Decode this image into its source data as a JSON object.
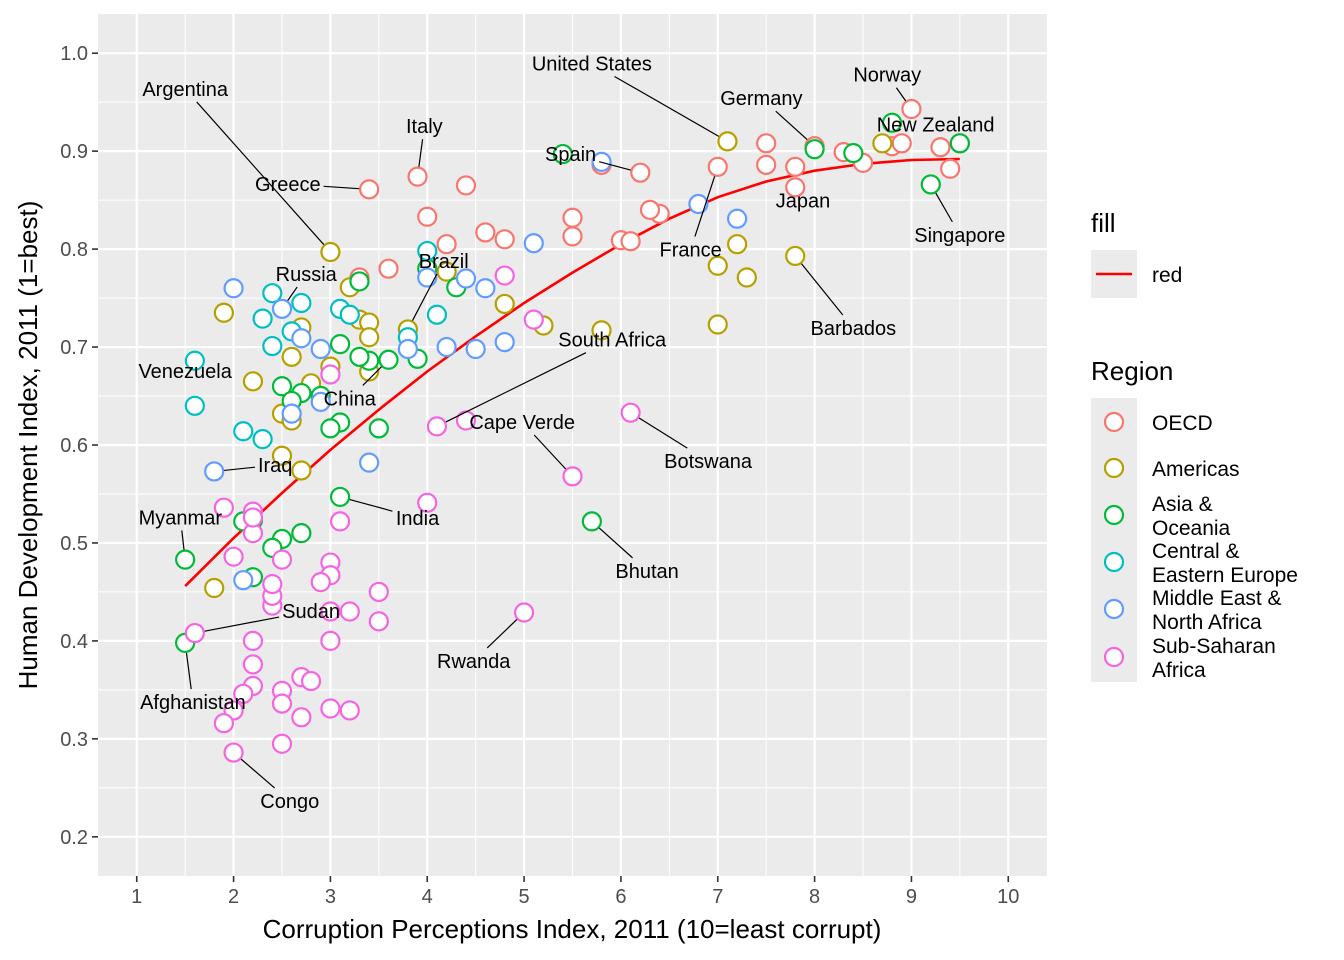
{
  "chart_data": {
    "type": "scatter",
    "xlabel": "Corruption Perceptions Index, 2011 (10=least corrupt)",
    "ylabel": "Human Development Index, 2011 (1=best)",
    "xlim": [
      0.6,
      10.4
    ],
    "ylim": [
      0.16,
      1.04
    ],
    "x_ticks": [
      1,
      2,
      3,
      4,
      5,
      6,
      7,
      8,
      9,
      10
    ],
    "y_ticks": [
      0.2,
      0.3,
      0.4,
      0.5,
      0.6,
      0.7,
      0.8,
      0.9,
      1.0
    ],
    "x_tick_labels": [
      "1",
      "2",
      "3",
      "4",
      "5",
      "6",
      "7",
      "8",
      "9",
      "10"
    ],
    "y_tick_labels": [
      "0.2",
      "0.3",
      "0.4",
      "0.5",
      "0.6",
      "0.7",
      "0.8",
      "0.9",
      "1.0"
    ],
    "grid": true,
    "legend_position": "right",
    "legends": [
      {
        "title": "fill",
        "entries": [
          {
            "label": "red",
            "color": "#FF0000",
            "shape": "line"
          }
        ]
      },
      {
        "title": "Region",
        "entries": [
          {
            "key": "OECD",
            "lines": [
              "OECD"
            ],
            "color": "#F8766D"
          },
          {
            "key": "Americas",
            "lines": [
              "Americas"
            ],
            "color": "#B79F00"
          },
          {
            "key": "Asia",
            "lines": [
              "Asia &",
              "Oceania"
            ],
            "color": "#00BA38"
          },
          {
            "key": "CEE",
            "lines": [
              "Central &",
              "Eastern Europe"
            ],
            "color": "#00BFC4"
          },
          {
            "key": "MENA",
            "lines": [
              "Middle East &",
              "North Africa"
            ],
            "color": "#619CFF"
          },
          {
            "key": "SSA",
            "lines": [
              "Sub-Saharan",
              "Africa"
            ],
            "color": "#F564E3"
          }
        ]
      }
    ],
    "trend_line": {
      "color": "#FF0000",
      "x": [
        1.5,
        2.0,
        2.5,
        3.0,
        3.5,
        4.0,
        4.5,
        5.0,
        5.5,
        6.0,
        6.5,
        7.0,
        7.5,
        8.0,
        8.5,
        9.0,
        9.5
      ],
      "y": [
        0.456,
        0.505,
        0.551,
        0.595,
        0.636,
        0.675,
        0.711,
        0.745,
        0.776,
        0.805,
        0.831,
        0.853,
        0.869,
        0.88,
        0.887,
        0.891,
        0.892
      ]
    },
    "series": [
      {
        "name": "OECD",
        "color": "#F8766D",
        "points": [
          [
            9.0,
            0.943
          ],
          [
            9.5,
            0.908
          ],
          [
            9.3,
            0.904
          ],
          [
            9.4,
            0.882
          ],
          [
            8.8,
            0.905
          ],
          [
            8.9,
            0.908
          ],
          [
            8.0,
            0.905
          ],
          [
            8.3,
            0.899
          ],
          [
            8.5,
            0.888
          ],
          [
            7.5,
            0.908
          ],
          [
            7.5,
            0.886
          ],
          [
            7.8,
            0.884
          ],
          [
            7.0,
            0.884
          ],
          [
            7.8,
            0.863
          ],
          [
            6.0,
            0.809
          ],
          [
            6.1,
            0.808
          ],
          [
            6.2,
            0.878
          ],
          [
            6.4,
            0.836
          ],
          [
            6.3,
            0.84
          ],
          [
            5.8,
            0.886
          ],
          [
            5.5,
            0.832
          ],
          [
            5.5,
            0.813
          ],
          [
            4.8,
            0.81
          ],
          [
            4.6,
            0.817
          ],
          [
            4.4,
            0.865
          ],
          [
            4.2,
            0.805
          ],
          [
            4.0,
            0.833
          ],
          [
            3.9,
            0.874
          ],
          [
            3.4,
            0.861
          ],
          [
            3.6,
            0.78
          ],
          [
            3.3,
            0.771
          ]
        ]
      },
      {
        "name": "Americas",
        "color": "#B79F00",
        "points": [
          [
            8.7,
            0.908
          ],
          [
            7.1,
            0.91
          ],
          [
            7.2,
            0.805
          ],
          [
            7.0,
            0.783
          ],
          [
            7.3,
            0.771
          ],
          [
            7.8,
            0.793
          ],
          [
            7.0,
            0.723
          ],
          [
            5.8,
            0.717
          ],
          [
            5.2,
            0.722
          ],
          [
            4.8,
            0.744
          ],
          [
            4.2,
            0.777
          ],
          [
            3.8,
            0.718
          ],
          [
            3.0,
            0.797
          ],
          [
            3.2,
            0.761
          ],
          [
            3.3,
            0.728
          ],
          [
            3.4,
            0.725
          ],
          [
            3.4,
            0.71
          ],
          [
            3.0,
            0.68
          ],
          [
            3.4,
            0.675
          ],
          [
            2.7,
            0.72
          ],
          [
            2.6,
            0.69
          ],
          [
            2.8,
            0.663
          ],
          [
            2.5,
            0.632
          ],
          [
            2.6,
            0.625
          ],
          [
            2.7,
            0.574
          ],
          [
            2.5,
            0.589
          ],
          [
            2.2,
            0.665
          ],
          [
            1.9,
            0.735
          ],
          [
            1.8,
            0.454
          ]
        ]
      },
      {
        "name": "Asia",
        "color": "#00BA38",
        "points": [
          [
            9.5,
            0.908
          ],
          [
            9.2,
            0.866
          ],
          [
            8.8,
            0.929
          ],
          [
            8.4,
            0.898
          ],
          [
            8.0,
            0.902
          ],
          [
            5.4,
            0.897
          ],
          [
            5.7,
            0.522
          ],
          [
            4.3,
            0.761
          ],
          [
            4.0,
            0.78
          ],
          [
            3.9,
            0.688
          ],
          [
            3.6,
            0.687
          ],
          [
            3.5,
            0.617
          ],
          [
            3.4,
            0.686
          ],
          [
            3.3,
            0.69
          ],
          [
            3.3,
            0.767
          ],
          [
            3.1,
            0.703
          ],
          [
            3.1,
            0.623
          ],
          [
            3.0,
            0.617
          ],
          [
            2.9,
            0.65
          ],
          [
            2.7,
            0.653
          ],
          [
            2.5,
            0.66
          ],
          [
            2.6,
            0.645
          ],
          [
            2.7,
            0.51
          ],
          [
            2.5,
            0.504
          ],
          [
            2.4,
            0.495
          ],
          [
            2.2,
            0.523
          ],
          [
            2.1,
            0.522
          ],
          [
            2.2,
            0.465
          ],
          [
            1.5,
            0.483
          ],
          [
            1.5,
            0.398
          ],
          [
            3.1,
            0.547
          ]
        ]
      },
      {
        "name": "CEE",
        "color": "#00BFC4",
        "points": [
          [
            4.0,
            0.798
          ],
          [
            4.1,
            0.733
          ],
          [
            3.8,
            0.71
          ],
          [
            3.1,
            0.739
          ],
          [
            3.2,
            0.733
          ],
          [
            2.7,
            0.745
          ],
          [
            2.4,
            0.755
          ],
          [
            2.3,
            0.729
          ],
          [
            2.4,
            0.701
          ],
          [
            2.6,
            0.716
          ],
          [
            2.1,
            0.614
          ],
          [
            2.3,
            0.606
          ],
          [
            1.6,
            0.64
          ],
          [
            1.6,
            0.686
          ]
        ]
      },
      {
        "name": "MENA",
        "color": "#619CFF",
        "points": [
          [
            7.2,
            0.831
          ],
          [
            6.8,
            0.846
          ],
          [
            5.8,
            0.889
          ],
          [
            5.1,
            0.806
          ],
          [
            4.6,
            0.76
          ],
          [
            4.4,
            0.77
          ],
          [
            4.8,
            0.705
          ],
          [
            4.5,
            0.698
          ],
          [
            4.2,
            0.7
          ],
          [
            4.0,
            0.771
          ],
          [
            3.8,
            0.698
          ],
          [
            3.4,
            0.582
          ],
          [
            2.9,
            0.644
          ],
          [
            2.9,
            0.698
          ],
          [
            2.7,
            0.709
          ],
          [
            2.6,
            0.632
          ],
          [
            2.5,
            0.739
          ],
          [
            2.0,
            0.76
          ],
          [
            1.8,
            0.573
          ],
          [
            2.1,
            0.462
          ]
        ]
      },
      {
        "name": "SSA",
        "color": "#F564E3",
        "points": [
          [
            6.1,
            0.633
          ],
          [
            5.5,
            0.568
          ],
          [
            5.1,
            0.728
          ],
          [
            5.0,
            0.429
          ],
          [
            4.8,
            0.773
          ],
          [
            4.4,
            0.625
          ],
          [
            4.1,
            0.619
          ],
          [
            4.0,
            0.541
          ],
          [
            3.5,
            0.45
          ],
          [
            3.5,
            0.42
          ],
          [
            3.2,
            0.43
          ],
          [
            3.0,
            0.48
          ],
          [
            3.0,
            0.467
          ],
          [
            3.0,
            0.43
          ],
          [
            3.0,
            0.4
          ],
          [
            2.9,
            0.46
          ],
          [
            3.1,
            0.522
          ],
          [
            3.0,
            0.672
          ],
          [
            2.7,
            0.363
          ],
          [
            2.8,
            0.359
          ],
          [
            2.5,
            0.349
          ],
          [
            2.5,
            0.336
          ],
          [
            2.5,
            0.295
          ],
          [
            2.7,
            0.322
          ],
          [
            3.0,
            0.331
          ],
          [
            3.2,
            0.329
          ],
          [
            2.4,
            0.436
          ],
          [
            2.4,
            0.446
          ],
          [
            2.4,
            0.458
          ],
          [
            2.5,
            0.483
          ],
          [
            2.2,
            0.4
          ],
          [
            2.2,
            0.376
          ],
          [
            2.2,
            0.354
          ],
          [
            2.1,
            0.346
          ],
          [
            2.0,
            0.329
          ],
          [
            1.9,
            0.316
          ],
          [
            2.0,
            0.286
          ],
          [
            1.6,
            0.408
          ],
          [
            2.0,
            0.486
          ],
          [
            2.2,
            0.51
          ],
          [
            2.2,
            0.532
          ],
          [
            1.9,
            0.536
          ],
          [
            2.2,
            0.526
          ]
        ]
      }
    ],
    "annotations": [
      {
        "text": "Norway",
        "point": [
          9.0,
          0.943
        ],
        "label": [
          8.75,
          0.978
        ]
      },
      {
        "text": "New Zealand",
        "point": [
          8.9,
          0.908
        ],
        "label": [
          9.25,
          0.927
        ]
      },
      {
        "text": "United States",
        "point": [
          7.1,
          0.91
        ],
        "label": [
          5.7,
          0.9895
        ]
      },
      {
        "text": "Germany",
        "point": [
          8.0,
          0.905
        ],
        "label": [
          7.45,
          0.954
        ]
      },
      {
        "text": "Spain",
        "point": [
          6.2,
          0.878
        ],
        "label": [
          5.48,
          0.897
        ]
      },
      {
        "text": "Japan",
        "point": [
          7.8,
          0.863
        ],
        "label": [
          7.88,
          0.8495
        ]
      },
      {
        "text": "France",
        "point": [
          7.0,
          0.884
        ],
        "label": [
          6.72,
          0.7995
        ]
      },
      {
        "text": "Singapore",
        "point": [
          9.2,
          0.866
        ],
        "label": [
          9.5,
          0.8145
        ]
      },
      {
        "text": "Barbados",
        "point": [
          7.8,
          0.793
        ],
        "label": [
          8.4,
          0.7195
        ]
      },
      {
        "text": "Italy",
        "point": [
          3.9,
          0.874
        ],
        "label": [
          3.97,
          0.9255
        ]
      },
      {
        "text": "Greece",
        "point": [
          3.4,
          0.861
        ],
        "label": [
          2.56,
          0.8665
        ]
      },
      {
        "text": "Argentina",
        "point": [
          3.0,
          0.797
        ],
        "label": [
          1.5,
          0.9635
        ]
      },
      {
        "text": "Brazil",
        "point": [
          3.8,
          0.718
        ],
        "label": [
          4.17,
          0.788
        ]
      },
      {
        "text": "Russia",
        "point": [
          2.5,
          0.739
        ],
        "label": [
          2.75,
          0.7745
        ]
      },
      {
        "text": "South Africa",
        "point": [
          4.1,
          0.619
        ],
        "label": [
          5.91,
          0.7075
        ]
      },
      {
        "text": "China",
        "point": [
          3.6,
          0.687
        ],
        "label": [
          3.2,
          0.6475
        ]
      },
      {
        "text": "Venezuela",
        "point": [
          1.6,
          0.686
        ],
        "label": [
          1.5,
          0.6755
        ]
      },
      {
        "text": "Cape Verde",
        "point": [
          5.5,
          0.568
        ],
        "label": [
          4.98,
          0.6235
        ]
      },
      {
        "text": "Botswana",
        "point": [
          6.1,
          0.633
        ],
        "label": [
          6.9,
          0.5835
        ]
      },
      {
        "text": "Iraq",
        "point": [
          1.8,
          0.573
        ],
        "label": [
          2.43,
          0.5795
        ]
      },
      {
        "text": "India",
        "point": [
          3.1,
          0.547
        ],
        "label": [
          3.9,
          0.5255
        ]
      },
      {
        "text": "Myanmar",
        "point": [
          1.5,
          0.483
        ],
        "label": [
          1.45,
          0.526
        ]
      },
      {
        "text": "Bhutan",
        "point": [
          5.7,
          0.522
        ],
        "label": [
          6.27,
          0.4715
        ]
      },
      {
        "text": "Sudan",
        "point": [
          1.6,
          0.408
        ],
        "label": [
          2.8,
          0.4305
        ]
      },
      {
        "text": "Rwanda",
        "point": [
          5.0,
          0.429
        ],
        "label": [
          4.48,
          0.3795
        ]
      },
      {
        "text": "Afghanistan",
        "point": [
          1.5,
          0.398
        ],
        "label": [
          1.58,
          0.3375
        ]
      },
      {
        "text": "Congo",
        "point": [
          2.0,
          0.286
        ],
        "label": [
          2.58,
          0.2365
        ]
      }
    ]
  }
}
